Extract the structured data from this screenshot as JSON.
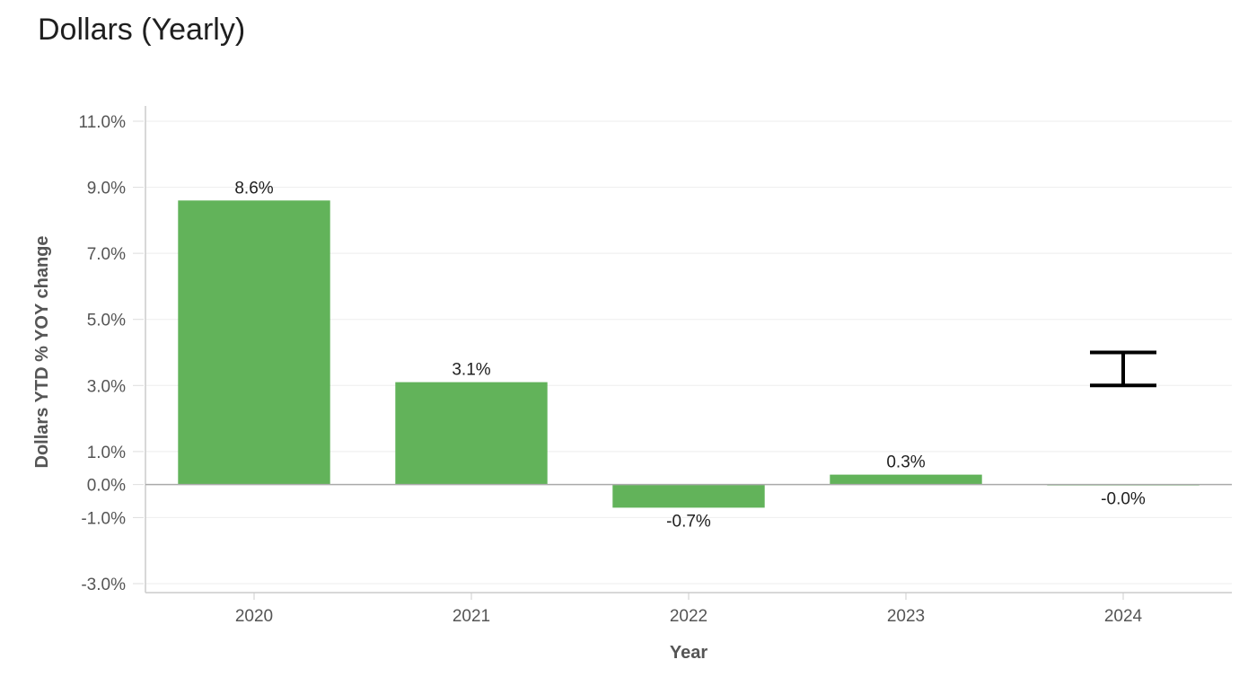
{
  "chart_data": {
    "type": "bar",
    "title": "Dollars (Yearly)",
    "xlabel": "Year",
    "ylabel": "Dollars YTD % YOY change",
    "categories": [
      "2020",
      "2021",
      "2022",
      "2023",
      "2024"
    ],
    "values": [
      8.6,
      3.1,
      -0.7,
      0.3,
      0.0
    ],
    "data_labels": [
      "8.6%",
      "3.1%",
      "-0.7%",
      "0.3%",
      "-0.0%"
    ],
    "ylim": [
      -3.0,
      11.0
    ],
    "yticks": [
      11.0,
      9.0,
      7.0,
      5.0,
      3.0,
      1.0,
      0.0,
      -1.0,
      -3.0
    ],
    "ytick_labels": [
      "11.0%",
      "9.0%",
      "7.0%",
      "5.0%",
      "3.0%",
      "1.0%",
      "0.0%",
      "-1.0%",
      "-3.0%"
    ],
    "bar_color": "#62b35a",
    "grid": true,
    "error_bar": {
      "category": "2024",
      "low": 3.0,
      "high": 4.0,
      "color": "#000000"
    }
  }
}
